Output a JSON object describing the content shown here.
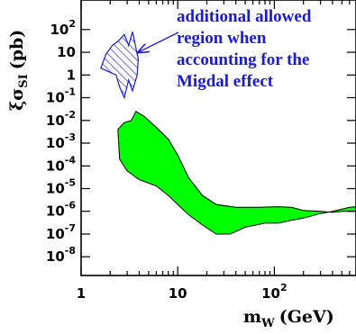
{
  "chart_data": {
    "type": "area",
    "xlabel": {
      "symbol": "m",
      "subscript": "W",
      "unit": "(GeV)"
    },
    "ylabel": {
      "symbol": "ξσ",
      "subscript": "SI",
      "unit": "(pb)"
    },
    "xscale": "log",
    "yscale": "log",
    "xlim": [
      1,
      700
    ],
    "ylim": [
      1.5e-09,
      2000
    ],
    "x_ticks": [
      {
        "value": 1,
        "label": "1"
      },
      {
        "value": 10,
        "label": "10"
      },
      {
        "value": 100,
        "base": "10",
        "exponent": "2"
      }
    ],
    "y_ticks": [
      {
        "value": 1e-08,
        "base": "10",
        "exponent": "-8"
      },
      {
        "value": 1e-07,
        "base": "10",
        "exponent": "-7"
      },
      {
        "value": 1e-06,
        "base": "10",
        "exponent": "-6"
      },
      {
        "value": 1e-05,
        "base": "10",
        "exponent": "-5"
      },
      {
        "value": 0.0001,
        "base": "10",
        "exponent": "-4"
      },
      {
        "value": 0.001,
        "base": "10",
        "exponent": "-3"
      },
      {
        "value": 0.01,
        "base": "10",
        "exponent": "-2"
      },
      {
        "value": 0.1,
        "base": "10",
        "exponent": "-1"
      },
      {
        "value": 1,
        "label": "1"
      },
      {
        "value": 10,
        "label": "10"
      },
      {
        "value": 100,
        "base": "10",
        "exponent": "2"
      }
    ],
    "regions": [
      {
        "fill": "solid",
        "color": "#00ff00",
        "upper": [
          [
            2.4,
            0.004
          ],
          [
            2.8,
            0.008
          ],
          [
            3.3,
            0.01
          ],
          [
            3.7,
            0.025
          ],
          [
            4.5,
            0.015
          ],
          [
            6,
            0.005
          ],
          [
            8,
            0.0015
          ],
          [
            10,
            0.0003
          ],
          [
            13,
            3e-05
          ],
          [
            18,
            5e-06
          ],
          [
            25,
            2e-06
          ],
          [
            40,
            1.5e-06
          ],
          [
            70,
            1.5e-06
          ],
          [
            110,
            1.6e-06
          ],
          [
            150,
            1.5e-06
          ],
          [
            200,
            1.1e-06
          ],
          [
            300,
            1e-06
          ],
          [
            400,
            9e-07
          ],
          [
            500,
            1e-06
          ],
          [
            700,
            1e-06
          ]
        ],
        "lower": [
          [
            2.5,
            0.0002
          ],
          [
            3,
            6e-05
          ],
          [
            4,
            2.5e-05
          ],
          [
            6,
            1.3e-05
          ],
          [
            8,
            5e-06
          ],
          [
            10,
            2e-06
          ],
          [
            13,
            7e-07
          ],
          [
            18,
            2.5e-07
          ],
          [
            25,
            1e-07
          ],
          [
            35,
            1e-07
          ],
          [
            50,
            2e-07
          ],
          [
            80,
            3e-07
          ],
          [
            110,
            3e-07
          ],
          [
            150,
            4e-07
          ],
          [
            200,
            5e-07
          ],
          [
            300,
            8e-07
          ],
          [
            400,
            1e-06
          ],
          [
            600,
            1.5e-06
          ],
          [
            700,
            1.6e-06
          ]
        ]
      },
      {
        "fill": "hatched",
        "color": "#1a1ad6",
        "outline": [
          [
            2.3,
            1
          ],
          [
            2.5,
            0.3
          ],
          [
            2.8,
            0.1
          ],
          [
            3.1,
            0.6
          ],
          [
            3.4,
            0.2
          ],
          [
            3.8,
            1
          ],
          [
            3.9,
            5
          ],
          [
            3.7,
            15
          ],
          [
            3.4,
            80
          ],
          [
            3.1,
            20
          ],
          [
            2.8,
            60
          ],
          [
            2.4,
            30
          ],
          [
            2.1,
            20
          ],
          [
            1.8,
            8
          ],
          [
            1.6,
            2
          ]
        ]
      }
    ],
    "annotation": {
      "lines": [
        "additional allowed",
        "region when",
        "accounting for the",
        "Migdal effect"
      ],
      "color": "#1a1ad6",
      "arrow_to": [
        3.9,
        10
      ]
    }
  }
}
